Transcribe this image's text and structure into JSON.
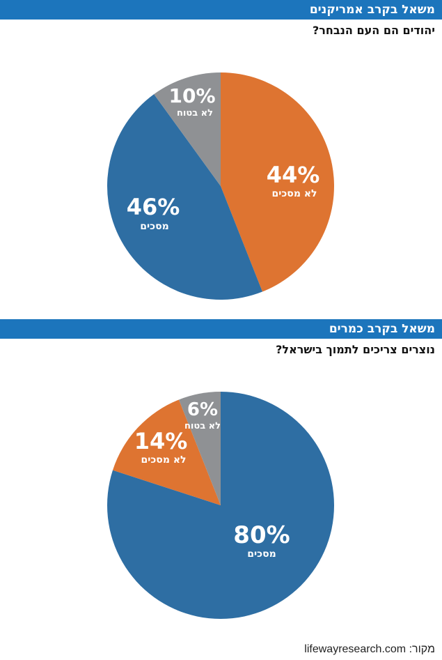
{
  "charts": [
    {
      "banner": "משאל בקרב אמריקנים",
      "question": "יהודים הם העם הנבחר?"
    },
    {
      "banner": "משאל בקרב כמרים",
      "question": "נוצרים צריכים לתמוך בישראל?"
    }
  ],
  "source": "מקור: lifewayresearch.com",
  "chart_data": [
    {
      "type": "pie",
      "title": "יהודים הם העם הנבחר?",
      "slices": [
        {
          "label": "לא מסכים",
          "value": 44,
          "display": "44%",
          "color": "#de7431"
        },
        {
          "label": "מסכים",
          "value": 46,
          "display": "46%",
          "color": "#2e6ea3"
        },
        {
          "label": "לא בטוח",
          "value": 10,
          "display": "10%",
          "color": "#8f9194"
        }
      ]
    },
    {
      "type": "pie",
      "title": "נוצרים צריכים לתמוך בישראל?",
      "slices": [
        {
          "label": "מסכים",
          "value": 80,
          "display": "80%",
          "color": "#2e6ea3"
        },
        {
          "label": "לא מסכים",
          "value": 14,
          "display": "14%",
          "color": "#de7431"
        },
        {
          "label": "לא בטוח",
          "value": 6,
          "display": "6%",
          "color": "#8f9194"
        }
      ]
    }
  ]
}
